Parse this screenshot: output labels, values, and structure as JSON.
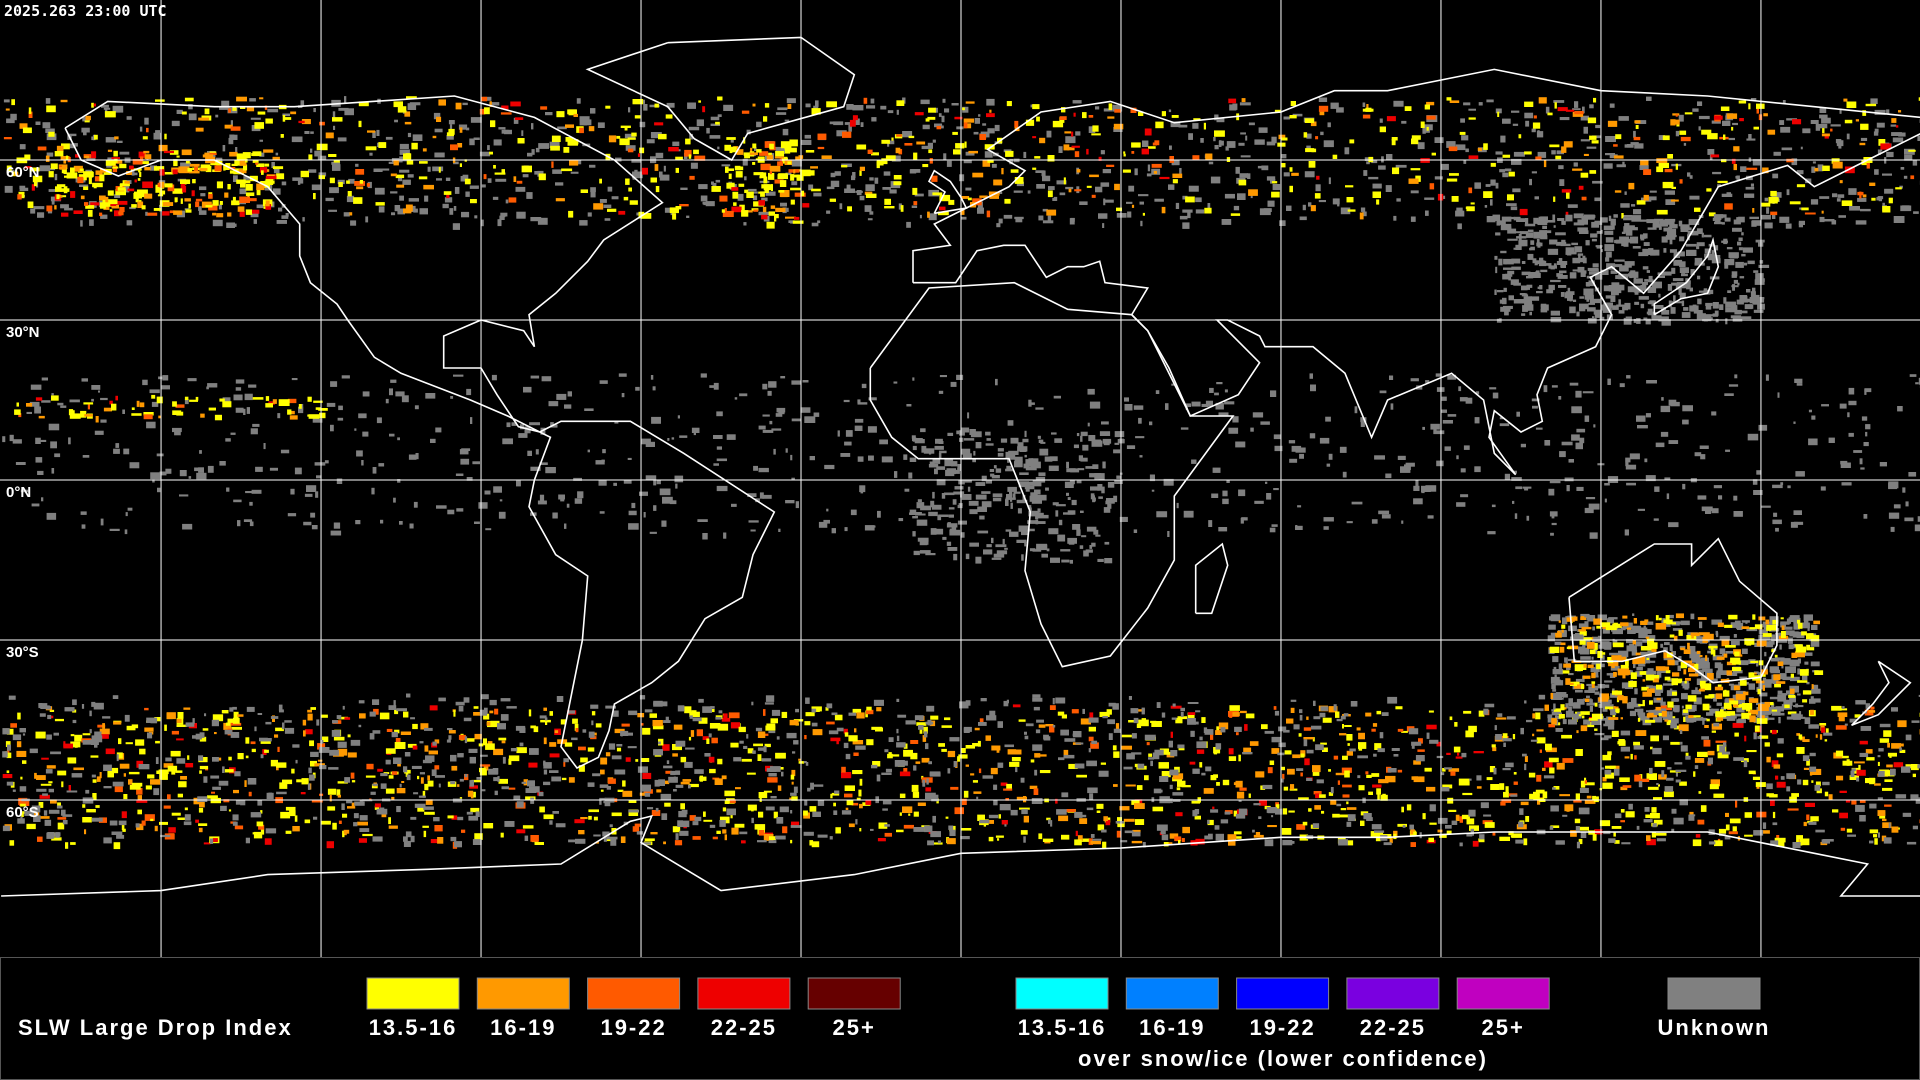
{
  "header": {
    "timestamp": "2025.263 23:00 UTC"
  },
  "map": {
    "latitude_labels": [
      "60°N",
      "30°N",
      "0°N",
      "30°S",
      "60°S"
    ]
  },
  "legend": {
    "title": "SLW Large Drop Index",
    "groups": [
      {
        "items": [
          {
            "label": "13.5-16",
            "color": "#ffff00"
          },
          {
            "label": "16-19",
            "color": "#ff9900"
          },
          {
            "label": "19-22",
            "color": "#ff5a00"
          },
          {
            "label": "22-25",
            "color": "#ee0000"
          },
          {
            "label": "25+",
            "color": "#660000"
          }
        ]
      },
      {
        "items": [
          {
            "label": "13.5-16",
            "color": "#00ffff"
          },
          {
            "label": "16-19",
            "color": "#0080ff"
          },
          {
            "label": "19-22",
            "color": "#0000ff"
          },
          {
            "label": "22-25",
            "color": "#7a00e0"
          },
          {
            "label": "25+",
            "color": "#c000c0"
          }
        ],
        "caption": "over snow/ice (lower confidence)"
      }
    ],
    "unknown": {
      "label": "Unknown",
      "color": "#808080"
    }
  }
}
